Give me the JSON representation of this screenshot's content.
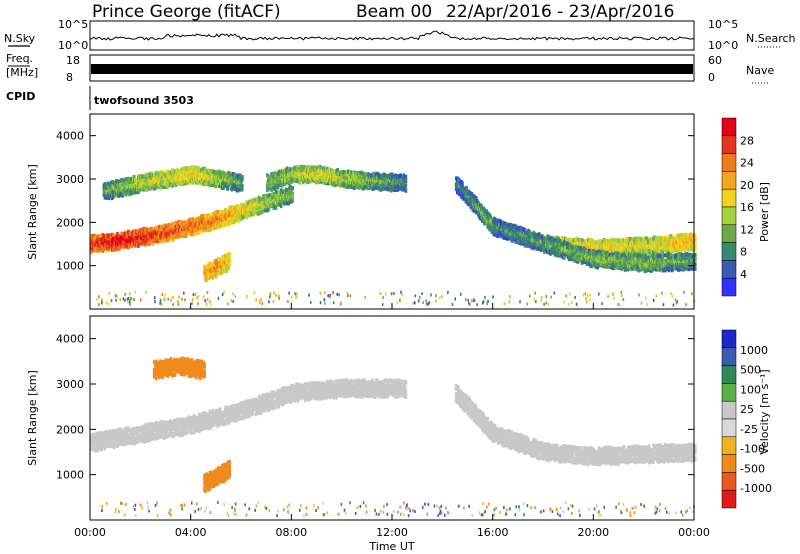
{
  "header": {
    "station": "Prince George (fitACF)",
    "beam": "Beam 00",
    "dates": "22/Apr/2016 - 23/Apr/2016"
  },
  "panels": {
    "nsky": {
      "label": "N.Sky",
      "right_label": "N.Search",
      "left_ticks": [
        "10^5",
        "10^0"
      ],
      "right_ticks": [
        "10^5",
        "10^0"
      ]
    },
    "freq": {
      "label_top": "Freq.",
      "label_unit": "[MHz]",
      "right_label": "Nave",
      "left_ticks": [
        "18",
        "8"
      ],
      "right_ticks": [
        "60",
        "0"
      ]
    },
    "cpid": {
      "label": "CPID",
      "program": "twofsound 3503"
    }
  },
  "colors": {
    "power_scale": [
      "#3232ff",
      "#3b5bb0",
      "#378a6d",
      "#6aaa4d",
      "#a5d23c",
      "#f2d21e",
      "#f2a81a",
      "#ee7c1c",
      "#e4341f",
      "#e4001b"
    ],
    "velocity_scale": [
      "#1e28c8",
      "#3b5bb0",
      "#2f8a5a",
      "#5eb04a",
      "#c8c8c8",
      "#d9d9d9",
      "#f2b21e",
      "#f08a1c",
      "#e85a1e",
      "#e01a1a"
    ],
    "gray": "#c8c8c8"
  },
  "chart_data": [
    {
      "type": "heatmap",
      "name": "Power",
      "ylabel": "Slant Range [km]",
      "ylim": [
        0,
        4500
      ],
      "yticks": [
        1000,
        2000,
        3000,
        4000
      ],
      "ytick_labels": [
        "1000",
        "2000",
        "3000",
        "4000"
      ],
      "xlim": [
        0,
        24
      ],
      "colorbar": {
        "label": "Power [dB]",
        "ticks": [
          "4",
          "8",
          "12",
          "16",
          "20",
          "24",
          "28"
        ],
        "range": [
          0,
          30
        ]
      },
      "echo_bands": [
        {
          "t": [
            0,
            1,
            2,
            3,
            4,
            5,
            6,
            7,
            8
          ],
          "range_km": [
            1500,
            1550,
            1650,
            1750,
            1900,
            2050,
            2250,
            2450,
            2650
          ],
          "power_db": [
            26,
            28,
            27,
            25,
            24,
            22,
            18,
            14,
            12
          ]
        },
        {
          "t": [
            0.5,
            2,
            3,
            4,
            5,
            6
          ],
          "range_km": [
            2700,
            2900,
            3000,
            3100,
            3000,
            2900
          ],
          "power_db": [
            10,
            14,
            16,
            18,
            14,
            10
          ]
        },
        {
          "t": [
            4.5,
            5,
            5.5
          ],
          "range_km": [
            800,
            950,
            1100
          ],
          "power_db": [
            20,
            22,
            18
          ]
        },
        {
          "t": [
            7,
            8,
            9,
            10,
            11,
            12.5
          ],
          "range_km": [
            2900,
            3100,
            3100,
            3000,
            2950,
            2900
          ],
          "power_db": [
            12,
            14,
            16,
            14,
            12,
            8
          ]
        },
        {
          "t": [
            14.5,
            16,
            18,
            20,
            22,
            24
          ],
          "range_km": [
            2900,
            1900,
            1500,
            1400,
            1450,
            1550
          ],
          "power_db": [
            8,
            12,
            16,
            18,
            16,
            20
          ]
        },
        {
          "t": [
            16,
            18,
            20,
            22,
            24
          ],
          "range_km": [
            1900,
            1500,
            1150,
            1050,
            1100
          ],
          "power_db": [
            8,
            10,
            12,
            12,
            10
          ]
        }
      ]
    },
    {
      "type": "heatmap",
      "name": "Velocity",
      "ylabel": "Slant Range [km]",
      "ylim": [
        0,
        4500
      ],
      "yticks": [
        1000,
        2000,
        3000,
        4000
      ],
      "ytick_labels": [
        "1000",
        "2000",
        "3000",
        "4000"
      ],
      "xlim": [
        0,
        24
      ],
      "xticks": [
        0,
        4,
        8,
        12,
        16,
        20,
        24
      ],
      "xtick_labels": [
        "00:00",
        "04:00",
        "08:00",
        "12:00",
        "16:00",
        "20:00",
        "00:00"
      ],
      "xlabel": "Time UT",
      "colorbar": {
        "label": "Velocity [m s⁻¹]",
        "ticks": [
          "1000",
          "500",
          "100",
          "25",
          "-25",
          "-100",
          "-500",
          "-1000"
        ]
      },
      "echo_bands": [
        {
          "t": [
            0,
            2,
            4,
            6,
            8,
            10,
            12.5
          ],
          "range_km": [
            1700,
            1900,
            2100,
            2400,
            2800,
            2900,
            2900
          ],
          "velocity": [
            0,
            0,
            0,
            0,
            0,
            0,
            0
          ]
        },
        {
          "t": [
            4.5,
            5,
            5.5
          ],
          "range_km": [
            800,
            950,
            1100
          ],
          "velocity": [
            -300,
            -400,
            -300
          ]
        },
        {
          "t": [
            2.5,
            3.5,
            4.5
          ],
          "range_km": [
            3300,
            3400,
            3300
          ],
          "velocity": [
            -200,
            -150,
            -100
          ]
        },
        {
          "t": [
            14.5,
            16,
            18,
            20,
            22,
            24
          ],
          "range_km": [
            2800,
            1900,
            1500,
            1400,
            1450,
            1500
          ],
          "velocity": [
            0,
            0,
            0,
            0,
            0,
            0
          ]
        }
      ]
    }
  ]
}
